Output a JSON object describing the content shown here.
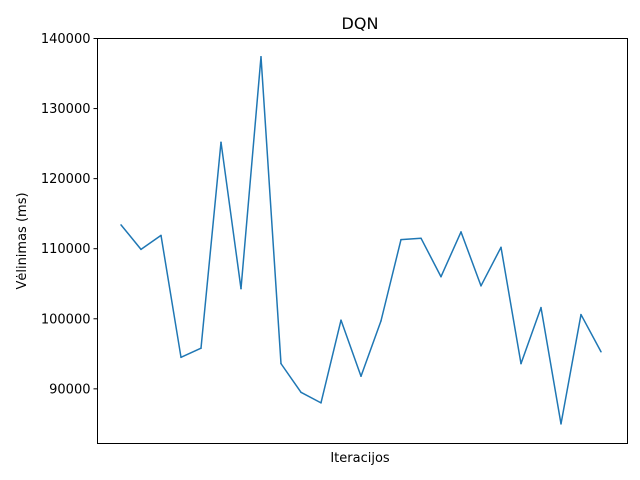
{
  "chart_data": {
    "type": "line",
    "title": "DQN",
    "xlabel": "Iteracijos",
    "ylabel": "Vėlinimas (ms)",
    "ylim": [
      82200,
      140000
    ],
    "yticks": [
      90000,
      100000,
      110000,
      120000,
      130000,
      140000
    ],
    "y_tick_labels": [
      "90000",
      "100000",
      "110000",
      "120000",
      "130000",
      "140000"
    ],
    "x_ticks_visible": false,
    "grid": false,
    "legend": "none",
    "series": [
      {
        "color": "#1f77b4",
        "x": [
          0,
          1,
          2,
          3,
          4,
          5,
          6,
          7,
          8,
          9,
          10,
          11,
          12,
          13,
          14,
          15,
          16,
          17,
          18,
          19,
          20,
          21,
          22,
          23,
          24
        ],
        "values": [
          113400,
          109900,
          111900,
          94500,
          95800,
          125200,
          104300,
          137400,
          93600,
          89500,
          88000,
          99800,
          91800,
          99700,
          111300,
          111500,
          106000,
          112400,
          104700,
          110200,
          93600,
          101600,
          85000,
          100600,
          95300
        ]
      }
    ]
  }
}
